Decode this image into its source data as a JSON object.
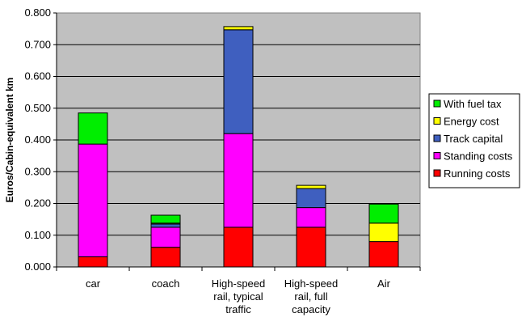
{
  "chart_data": {
    "type": "bar",
    "stacked": true,
    "title": "",
    "xlabel": "",
    "ylabel": "Euros/Cabin-equivalent km",
    "ylim": [
      0,
      0.8
    ],
    "yticks": [
      "0.000",
      "0.100",
      "0.200",
      "0.300",
      "0.400",
      "0.500",
      "0.600",
      "0.700",
      "0.800"
    ],
    "grid": true,
    "legend_position": "right",
    "plot_background": "#C0C0C0",
    "categories": [
      [
        "car"
      ],
      [
        "coach"
      ],
      [
        "High-speed",
        "rail, typical",
        "traffic"
      ],
      [
        "High-speed",
        "rail, full",
        "capacity"
      ],
      [
        "Air"
      ]
    ],
    "series": [
      {
        "name": "Running costs",
        "color": "#FF0000",
        "values": [
          0.032,
          0.062,
          0.125,
          0.125,
          0.08
        ]
      },
      {
        "name": "Standing costs",
        "color": "#FF00FF",
        "values": [
          0.355,
          0.063,
          0.295,
          0.062,
          0.0
        ]
      },
      {
        "name": "Track capital",
        "color": "#3F5FBF",
        "values": [
          0.0,
          0.01,
          0.327,
          0.06,
          0.0
        ]
      },
      {
        "name": "Energy cost",
        "color": "#FFFF00",
        "values": [
          0.0,
          0.003,
          0.01,
          0.01,
          0.058
        ]
      },
      {
        "name": "With fuel tax",
        "color": "#00EE00",
        "values": [
          0.098,
          0.025,
          0.0,
          0.0,
          0.06
        ]
      }
    ],
    "legend_order": [
      "With fuel tax",
      "Energy cost",
      "Track capital",
      "Standing costs",
      "Running costs"
    ]
  }
}
